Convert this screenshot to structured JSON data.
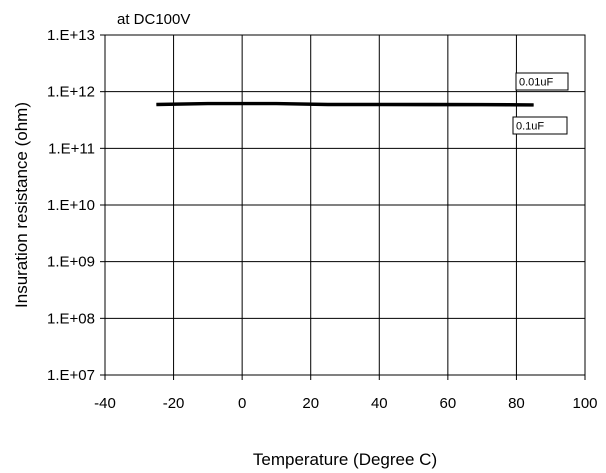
{
  "chart_data": {
    "type": "line",
    "title": "",
    "annotation": "at DC100V",
    "xlabel": "Temperature (Degree C)",
    "ylabel": "Insuration resistance (ohm)",
    "xlim": [
      -40,
      100
    ],
    "ylim_log10": [
      7,
      13
    ],
    "y_scale": "log",
    "grid": true,
    "x_ticks": [
      -40,
      -20,
      0,
      20,
      40,
      60,
      80,
      100
    ],
    "x_tick_labels": [
      "-40",
      "-20",
      "0",
      "20",
      "40",
      "60",
      "80",
      "100"
    ],
    "y_tick_labels": [
      "1.E+07",
      "1.E+08",
      "1.E+09",
      "1.E+10",
      "1.E+11",
      "1.E+12",
      "1.E+13"
    ],
    "series": [
      {
        "name": "0.01uF",
        "color": "#000000",
        "x": [
          -25,
          -10,
          10,
          25,
          40,
          55,
          70,
          85
        ],
        "y": [
          600000000000.0,
          620000000000.0,
          620000000000.0,
          600000000000.0,
          600000000000.0,
          600000000000.0,
          595000000000.0,
          590000000000.0
        ]
      },
      {
        "name": "0.1uF",
        "color": "#000000",
        "x": [
          -25,
          -10,
          10,
          25,
          40,
          55,
          70,
          85
        ],
        "y": [
          590000000000.0,
          610000000000.0,
          610000000000.0,
          590000000000.0,
          590000000000.0,
          585000000000.0,
          585000000000.0,
          580000000000.0
        ]
      }
    ]
  }
}
